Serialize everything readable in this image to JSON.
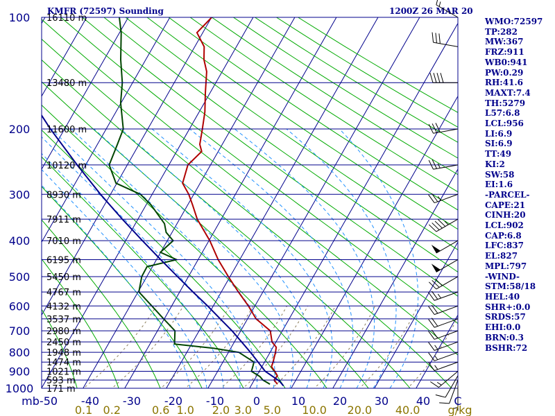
{
  "header": {
    "title": "KMFR (72597) Sounding",
    "time": "1200Z 26 MAR 20"
  },
  "side_stats": [
    "WMO:72597",
    "TP:282",
    "MW:367",
    "FRZ:911",
    "WB0:941",
    "PW:0.29",
    "RH:41.6",
    "MAXT:7.4",
    "TH:5279",
    "L57:6.8",
    "LCL:956",
    "LI:6.9",
    "SI:6.9",
    "TT:49",
    "KI:2",
    "SW:58",
    "EI:1.6",
    "-PARCEL-",
    "CAPE:21",
    "CINH:20",
    "LCL:902",
    "CAP:6.8",
    "LFC:837",
    "EL:827",
    "MPL:797",
    "-WIND-",
    "STM:58/18",
    "HEL:40",
    "SHR+:0.0",
    "SRDS:57",
    "EHI:0.0",
    "BRN:0.3",
    "BSHR:72"
  ],
  "colors": {
    "text": "#00008b",
    "isobar": "#00008b",
    "isotherm": "#00008b",
    "dry_adiabat": "#00aa00",
    "moist_adiabat": "#1e90ff",
    "mixing_ratio": "#8b7d5a",
    "temperature": "#b00000",
    "dewpoint": "#004400",
    "parcel": "#00008b",
    "wind_barb": "#000000",
    "mixing_ratio_labels": "#8b7500"
  },
  "chart_data": {
    "type": "skew-t",
    "pressure_unit": "mb",
    "temperature_unit": "C",
    "mixing_ratio_unit": "g/kg",
    "pressure_range": [
      1000,
      100
    ],
    "temperature_range": [
      -50,
      50
    ],
    "pressure_ticks": [
      "100",
      "200",
      "300",
      "400",
      "500",
      "600",
      "700",
      "800",
      "900",
      "1000"
    ],
    "temperature_ticks": [
      "-50",
      "-40",
      "-30",
      "-20",
      "-10",
      "0",
      "10",
      "20",
      "30",
      "40"
    ],
    "mixing_ratio_labels": [
      "0.1",
      "0.2",
      "0.6",
      "1.0",
      "2.0",
      "3.0",
      "5.0",
      "10.0",
      "20.0",
      "40.0"
    ],
    "height_labels": [
      {
        "p": 100,
        "label": "16110 m"
      },
      {
        "p": 150,
        "label": "13480 m"
      },
      {
        "p": 200,
        "label": "11600 m"
      },
      {
        "p": 250,
        "label": "10120 m"
      },
      {
        "p": 300,
        "label": "8930 m"
      },
      {
        "p": 350,
        "label": "7911 m"
      },
      {
        "p": 400,
        "label": "7010 m"
      },
      {
        "p": 450,
        "label": "6195 m"
      },
      {
        "p": 500,
        "label": "5450 m"
      },
      {
        "p": 550,
        "label": "4767 m"
      },
      {
        "p": 600,
        "label": "4132 m"
      },
      {
        "p": 650,
        "label": "3537 m"
      },
      {
        "p": 700,
        "label": "2980 m"
      },
      {
        "p": 750,
        "label": "2450 m"
      },
      {
        "p": 800,
        "label": "1948 m"
      },
      {
        "p": 850,
        "label": "1474 m"
      },
      {
        "p": 900,
        "label": "1021 m"
      },
      {
        "p": 950,
        "label": "593 m"
      },
      {
        "p": 1000,
        "label": "171 m"
      }
    ],
    "temperature_profile": [
      [
        975,
        3.6
      ],
      [
        950,
        1.4
      ],
      [
        925,
        0.8
      ],
      [
        900,
        -1.2
      ],
      [
        875,
        -3.4
      ],
      [
        850,
        -4.4
      ],
      [
        800,
        -6.6
      ],
      [
        775,
        -7.8
      ],
      [
        750,
        -10.2
      ],
      [
        700,
        -13.4
      ],
      [
        650,
        -19.6
      ],
      [
        600,
        -24.2
      ],
      [
        550,
        -29.4
      ],
      [
        500,
        -34.6
      ],
      [
        450,
        -39.8
      ],
      [
        400,
        -44.6
      ],
      [
        350,
        -50.4
      ],
      [
        320,
        -53.2
      ],
      [
        300,
        -55.2
      ],
      [
        280,
        -57.8
      ],
      [
        250,
        -58.2
      ],
      [
        230,
        -56.0
      ],
      [
        220,
        -57.0
      ],
      [
        200,
        -57.5
      ],
      [
        180,
        -58.0
      ],
      [
        160,
        -59.0
      ],
      [
        140,
        -59.8
      ],
      [
        130,
        -61.0
      ],
      [
        120,
        -61.5
      ],
      [
        110,
        -63.8
      ],
      [
        100,
        -60.8
      ]
    ],
    "dewpoint_profile": [
      [
        975,
        1.8
      ],
      [
        950,
        -1.3
      ],
      [
        930,
        -3.1
      ],
      [
        900,
        -6.8
      ],
      [
        870,
        -8.1
      ],
      [
        850,
        -9.0
      ],
      [
        800,
        -15.4
      ],
      [
        780,
        -22.6
      ],
      [
        760,
        -33.1
      ],
      [
        750,
        -33.6
      ],
      [
        700,
        -36.3
      ],
      [
        650,
        -41.8
      ],
      [
        600,
        -47.4
      ],
      [
        550,
        -53.3
      ],
      [
        500,
        -55.4
      ],
      [
        470,
        -55.8
      ],
      [
        450,
        -49.8
      ],
      [
        430,
        -54.8
      ],
      [
        400,
        -53.4
      ],
      [
        380,
        -56.2
      ],
      [
        360,
        -57.7
      ],
      [
        320,
        -63.2
      ],
      [
        300,
        -66.8
      ],
      [
        280,
        -73.8
      ],
      [
        250,
        -77.1
      ],
      [
        220,
        -76.8
      ],
      [
        200,
        -76.5
      ],
      [
        170,
        -78.8
      ],
      [
        150,
        -79.5
      ],
      [
        130,
        -81.0
      ],
      [
        110,
        -82.0
      ],
      [
        100,
        -83.0
      ]
    ],
    "parcel_profile": [
      [
        985,
        5.6
      ],
      [
        956,
        3.0
      ],
      [
        900,
        -3.5
      ],
      [
        850,
        -8.0
      ],
      [
        800,
        -12.6
      ],
      [
        750,
        -17.5
      ],
      [
        700,
        -22.6
      ],
      [
        650,
        -28.2
      ],
      [
        600,
        -34.0
      ],
      [
        550,
        -40.3
      ],
      [
        500,
        -46.8
      ],
      [
        450,
        -53.6
      ],
      [
        400,
        -60.8
      ],
      [
        350,
        -68.4
      ],
      [
        300,
        -76.4
      ],
      [
        250,
        -84.8
      ],
      [
        200,
        -94.0
      ],
      [
        150,
        -104.0
      ],
      [
        120,
        -110.0
      ]
    ],
    "wind_profile": [
      {
        "p": 985,
        "dir": 180,
        "spd": 5
      },
      {
        "p": 950,
        "dir": 200,
        "spd": 10
      },
      {
        "p": 925,
        "dir": 210,
        "spd": 10
      },
      {
        "p": 900,
        "dir": 230,
        "spd": 15
      },
      {
        "p": 850,
        "dir": 250,
        "spd": 15
      },
      {
        "p": 800,
        "dir": 250,
        "spd": 15
      },
      {
        "p": 750,
        "dir": 250,
        "spd": 15
      },
      {
        "p": 700,
        "dir": 250,
        "spd": 20
      },
      {
        "p": 650,
        "dir": 250,
        "spd": 20
      },
      {
        "p": 600,
        "dir": 250,
        "spd": 20
      },
      {
        "p": 550,
        "dir": 250,
        "spd": 25
      },
      {
        "p": 500,
        "dir": 240,
        "spd": 30
      },
      {
        "p": 450,
        "dir": 240,
        "spd": 50
      },
      {
        "p": 400,
        "dir": 240,
        "spd": 50
      },
      {
        "p": 350,
        "dir": 240,
        "spd": 45
      },
      {
        "p": 300,
        "dir": 250,
        "spd": 25
      },
      {
        "p": 250,
        "dir": 260,
        "spd": 25
      },
      {
        "p": 200,
        "dir": 260,
        "spd": 30
      },
      {
        "p": 150,
        "dir": 270,
        "spd": 40
      },
      {
        "p": 120,
        "dir": 280,
        "spd": 30
      },
      {
        "p": 100,
        "dir": 300,
        "spd": 15
      }
    ],
    "dry_adiabats_theta_k": [
      190,
      200,
      210,
      220,
      230,
      240,
      250,
      260,
      270,
      280,
      290,
      300,
      310,
      320,
      330,
      340,
      350,
      360,
      370,
      380,
      390,
      400,
      410,
      420,
      430,
      440,
      450
    ],
    "moist_adiabats_thetaw_c": [
      -16,
      -12,
      -8,
      -4,
      0,
      4,
      8,
      12,
      16,
      20,
      24,
      28,
      32
    ],
    "mixing_ratio_lines": [
      0.1,
      0.2,
      0.6,
      1.0,
      2.0,
      3.0,
      5.0,
      10.0,
      20.0,
      40.0
    ],
    "grid": true
  }
}
